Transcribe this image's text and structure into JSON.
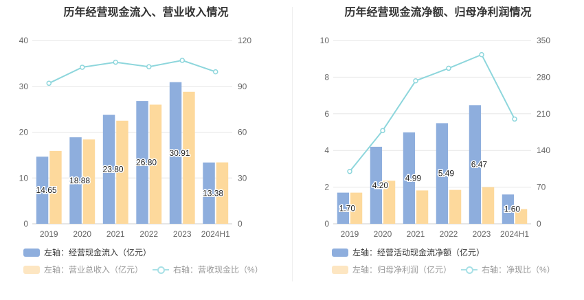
{
  "chart_data": [
    {
      "type": "bar",
      "title": "历年经营现金流入、营业收入情况",
      "categories": [
        "2019",
        "2020",
        "2021",
        "2022",
        "2023",
        "2024H1"
      ],
      "left_axis": {
        "ticks": [
          "0",
          "10",
          "20",
          "30",
          "40"
        ],
        "range": [
          0,
          40
        ]
      },
      "right_axis": {
        "ticks": [
          "0",
          "30",
          "60",
          "90",
          "120"
        ],
        "range": [
          0,
          120
        ]
      },
      "series": [
        {
          "name": "左轴：经营现金流入（亿元）",
          "axis": "left",
          "kind": "bar",
          "color": "#8eaedd",
          "values": [
            14.65,
            18.88,
            23.8,
            26.8,
            30.91,
            13.38
          ],
          "labels": [
            "14.65",
            "18.88",
            "23.80",
            "26.80",
            "30.91",
            "13.38"
          ]
        },
        {
          "name": "左轴：营业总收入（亿元）",
          "axis": "left",
          "kind": "bar",
          "color": "#fdd99c",
          "values": [
            15.9,
            18.4,
            22.5,
            26.0,
            28.8,
            13.4
          ]
        },
        {
          "name": "右轴：营收现金比（%）",
          "axis": "right",
          "kind": "line",
          "color": "#8dd6dc",
          "values": [
            92.0,
            102.5,
            105.8,
            102.8,
            107.0,
            99.5
          ]
        }
      ],
      "grid": true,
      "legend": "bottom"
    },
    {
      "type": "bar",
      "title": "历年经营现金流净额、归母净利润情况",
      "categories": [
        "2019",
        "2020",
        "2021",
        "2022",
        "2023",
        "2024H1"
      ],
      "left_axis": {
        "ticks": [
          "0",
          "2",
          "4",
          "6",
          "8",
          "10"
        ],
        "range": [
          0,
          10
        ]
      },
      "right_axis": {
        "ticks": [
          "0",
          "70",
          "140",
          "210",
          "280",
          "350"
        ],
        "range": [
          0,
          350
        ]
      },
      "series": [
        {
          "name": "左轴：经营活动现金流净额（亿元）",
          "axis": "left",
          "kind": "bar",
          "color": "#8eaedd",
          "values": [
            1.7,
            4.2,
            4.99,
            5.49,
            6.47,
            1.6
          ],
          "labels": [
            "1.70",
            "4.20",
            "4.99",
            "5.49",
            "6.47",
            "1.60"
          ]
        },
        {
          "name": "左轴：归母净利润（亿元）",
          "axis": "left",
          "kind": "bar",
          "color": "#fdd99c",
          "values": [
            1.7,
            2.35,
            1.82,
            1.85,
            2.0,
            0.8
          ]
        },
        {
          "name": "右轴：净现比（%）",
          "axis": "right",
          "kind": "line",
          "color": "#8dd6dc",
          "values": [
            100,
            178,
            273,
            297,
            323,
            200
          ]
        }
      ],
      "grid": true,
      "legend": "bottom"
    }
  ]
}
